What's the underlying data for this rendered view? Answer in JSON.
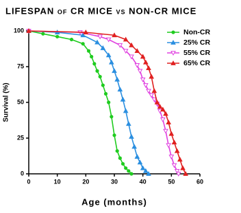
{
  "chart_data": {
    "type": "line",
    "title": "LIFESPAN of CR MICE vs NON-CR MICE",
    "x_label": "Age (months)",
    "y_label": "Survival (%)",
    "xlim": [
      0,
      60
    ],
    "xticks": [
      0,
      10,
      20,
      30,
      40,
      50,
      60
    ],
    "ylim": [
      0,
      100
    ],
    "yticks": [
      0,
      25,
      50,
      75,
      100
    ],
    "legend": "top-right",
    "series": [
      {
        "name": "Non-CR",
        "color": "#1fcc1f",
        "marker": "circle",
        "x": [
          0,
          5,
          10,
          15,
          19,
          21,
          22,
          23,
          24,
          25,
          26,
          27,
          28,
          29,
          30,
          31,
          32,
          33,
          34,
          35,
          36
        ],
        "values": [
          100,
          98,
          96,
          94,
          91,
          86,
          82,
          77,
          72,
          68,
          62,
          56,
          50,
          40,
          27,
          16,
          11,
          7,
          4,
          2,
          0
        ]
      },
      {
        "name": "25% CR",
        "color": "#2b8fe0",
        "marker": "triangle-up",
        "x": [
          0,
          10,
          19,
          24,
          26,
          28,
          29,
          30,
          31,
          32,
          33,
          34,
          35,
          36,
          37,
          38,
          39,
          40,
          41,
          42
        ],
        "values": [
          100,
          99,
          97,
          92,
          88,
          83,
          78,
          72,
          66,
          59,
          52,
          44,
          35,
          26,
          19,
          12,
          8,
          4,
          2,
          0
        ]
      },
      {
        "name": "55% CR",
        "color": "#e040e0",
        "marker": "triangle-down",
        "x": [
          0,
          18,
          25,
          28,
          32,
          34,
          36,
          38,
          39,
          40,
          41,
          42,
          43,
          44,
          45,
          46,
          47,
          48,
          49,
          50,
          51,
          52,
          52.5
        ],
        "values": [
          100,
          99,
          96,
          94,
          90,
          86,
          82,
          76,
          72,
          66,
          62,
          58,
          55,
          52,
          49,
          44,
          38,
          30,
          20,
          12,
          6,
          2,
          0
        ]
      },
      {
        "name": "65% CR",
        "color": "#e02020",
        "marker": "triangle-up",
        "x": [
          0,
          20,
          30,
          34,
          36,
          38,
          40,
          41,
          42,
          43,
          44,
          45,
          46,
          47,
          48,
          49,
          50,
          51,
          52,
          53,
          54,
          55
        ],
        "values": [
          100,
          99,
          97,
          94,
          90,
          86,
          82,
          78,
          74,
          68,
          58,
          50,
          47,
          45,
          42,
          36,
          28,
          22,
          16,
          10,
          4,
          0
        ]
      }
    ]
  }
}
